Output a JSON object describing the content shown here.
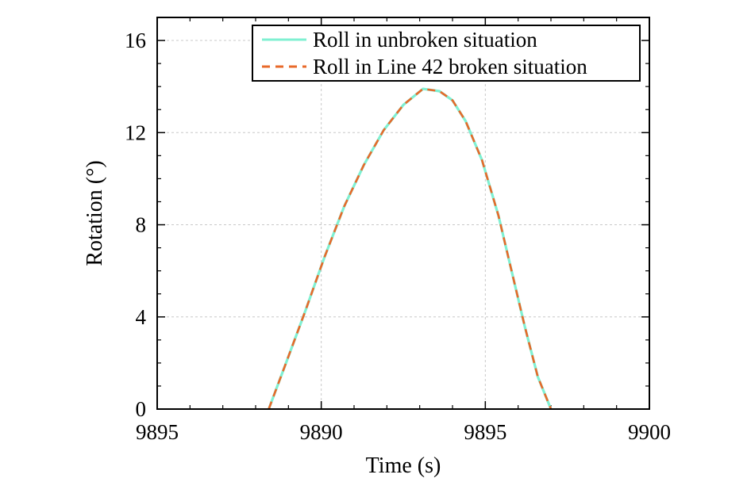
{
  "chart_data": {
    "type": "line",
    "xlabel": "Time (s)",
    "ylabel": "Rotation (°)",
    "x_ticks": [
      {
        "value": 0,
        "label": "9895"
      },
      {
        "value": 5,
        "label": "9890"
      },
      {
        "value": 10,
        "label": "9895"
      },
      {
        "value": 15,
        "label": "9900"
      }
    ],
    "y_ticks": [
      0,
      4,
      8,
      12,
      16
    ],
    "xlim": [
      0,
      15
    ],
    "ylim": [
      0,
      17
    ],
    "grid": true,
    "legend_position": "top-right",
    "series": [
      {
        "name": "Roll in unbroken situation",
        "color": "#7ff0d2",
        "style": "solid",
        "x": [
          3.4,
          3.9,
          4.5,
          5.1,
          5.7,
          6.3,
          6.9,
          7.5,
          8.1,
          8.6,
          9.0,
          9.4,
          9.9,
          10.4,
          10.8,
          11.2,
          11.6,
          12.0
        ],
        "y": [
          0,
          1.9,
          4.2,
          6.6,
          8.8,
          10.6,
          12.1,
          13.2,
          13.9,
          13.8,
          13.4,
          12.5,
          10.8,
          8.4,
          6.0,
          3.6,
          1.4,
          0
        ]
      },
      {
        "name": "Roll in Line 42 broken situation",
        "color": "#e8692a",
        "style": "dashed",
        "x": [
          3.4,
          3.9,
          4.5,
          5.1,
          5.7,
          6.3,
          6.9,
          7.5,
          8.1,
          8.6,
          9.0,
          9.4,
          9.9,
          10.4,
          10.8,
          11.2,
          11.6,
          12.0
        ],
        "y": [
          0,
          1.9,
          4.2,
          6.6,
          8.8,
          10.6,
          12.1,
          13.2,
          13.9,
          13.8,
          13.4,
          12.5,
          10.8,
          8.4,
          6.0,
          3.6,
          1.4,
          0
        ]
      }
    ]
  }
}
